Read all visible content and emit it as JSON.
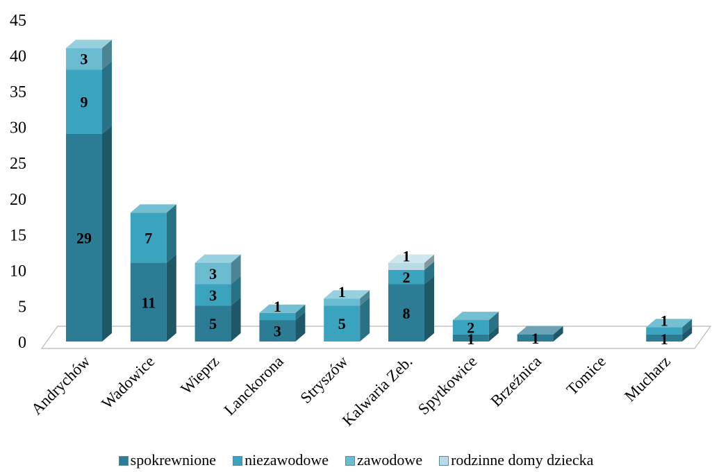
{
  "chart_data": {
    "type": "bar",
    "stacked": true,
    "style": "3d",
    "categories": [
      "Andrychów",
      "Wadowice",
      "Wieprz",
      "Lanckorona",
      "Stryszów",
      "Kalwaria Zeb.",
      "Spytkowice",
      "Brzeźnica",
      "Tomice",
      "Mucharz"
    ],
    "series": [
      {
        "name": "spokrewnione",
        "color": "#2b7c94",
        "values": [
          29,
          11,
          5,
          3,
          0,
          8,
          1,
          1,
          0,
          1
        ]
      },
      {
        "name": "niezawodowe",
        "color": "#3aa3be",
        "values": [
          9,
          7,
          3,
          1,
          5,
          2,
          2,
          0,
          0,
          1
        ]
      },
      {
        "name": "zawodowe",
        "color": "#6bbcd0",
        "values": [
          3,
          0,
          3,
          0,
          1,
          0,
          0,
          0,
          0,
          0
        ]
      },
      {
        "name": "rodzinne domy dziecka",
        "color": "#b9dbe6",
        "values": [
          0,
          0,
          0,
          0,
          0,
          1,
          0,
          0,
          0,
          0
        ]
      }
    ],
    "data_labels": [
      [
        29,
        9,
        3
      ],
      [
        11,
        7
      ],
      [
        5,
        3,
        3
      ],
      [
        3,
        1
      ],
      [
        5,
        1
      ],
      [
        8,
        2,
        1
      ],
      [
        1,
        2
      ],
      [
        1
      ],
      [],
      [
        1,
        1
      ]
    ],
    "ylim": [
      0,
      45
    ],
    "yticks": [
      0,
      5,
      10,
      15,
      20,
      25,
      30,
      35,
      40,
      45
    ],
    "grid": false,
    "legend_position": "bottom",
    "title": "",
    "xlabel": "",
    "ylabel": ""
  }
}
